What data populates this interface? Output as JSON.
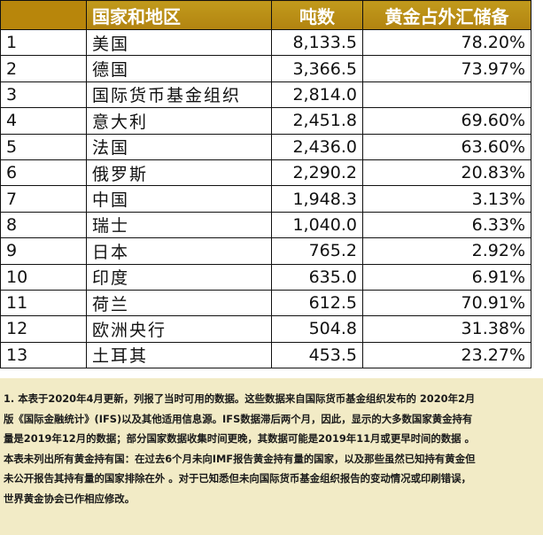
{
  "table": {
    "headers": {
      "rank": "",
      "name": "国家和地区",
      "tons": "吨数",
      "pct": "黄金占外汇储备"
    },
    "rows": [
      {
        "rank": "1",
        "name": "美国",
        "tons": "8,133.5",
        "pct": "78.20%"
      },
      {
        "rank": "2",
        "name": "德国",
        "tons": "3,366.5",
        "pct": "73.97%"
      },
      {
        "rank": "3",
        "name": "国际货币基金组织",
        "tons": "2,814.0",
        "pct": ""
      },
      {
        "rank": "4",
        "name": "意大利",
        "tons": "2,451.8",
        "pct": "69.60%"
      },
      {
        "rank": "5",
        "name": "法国",
        "tons": "2,436.0",
        "pct": "63.60%"
      },
      {
        "rank": "6",
        "name": "俄罗斯",
        "tons": "2,290.2",
        "pct": "20.83%"
      },
      {
        "rank": "7",
        "name": "中国",
        "tons": "1,948.3",
        "pct": "3.13%"
      },
      {
        "rank": "8",
        "name": "瑞士",
        "tons": "1,040.0",
        "pct": "6.33%"
      },
      {
        "rank": "9",
        "name": "日本",
        "tons": "765.2",
        "pct": "2.92%"
      },
      {
        "rank": "10",
        "name": "印度",
        "tons": "635.0",
        "pct": "6.91%"
      },
      {
        "rank": "11",
        "name": "荷兰",
        "tons": "612.5",
        "pct": "70.91%"
      },
      {
        "rank": "12",
        "name": "欧洲央行",
        "tons": "504.8",
        "pct": "31.38%"
      },
      {
        "rank": "13",
        "name": "土耳其",
        "tons": "453.5",
        "pct": "23.27%"
      }
    ]
  },
  "notes": {
    "line1": "1. 本表于2020年4月更新，列报了当时可用的数据。这些数据来自国际货币基金组织发布的 2020年2月",
    "line2": "版《国际金融统计》(IFS)以及其他适用信息源。IFS数据滞后两个月，因此，显示的大多数国家黄金持有",
    "line3": "量是2019年12月的数据；部分国家数据收集时间更晚，其数据可能是2019年11月或更早时间的数据 。",
    "line4": "本表未列出所有黄金持有国：在过去6个月未向IMF报告黄金持有量的国家，以及那些虽然已知持有黄金但",
    "line5": "未公开报告其持有量的国家排除在外 。对于已知悉但未向国际货币基金组织报告的变动情况或印刷错误，",
    "line6": "世界黄金协会已作相应修改。"
  },
  "colors": {
    "header_bg": "#b8860b",
    "header_text": "#ffffff",
    "notes_bg": "#f2ebc6"
  }
}
